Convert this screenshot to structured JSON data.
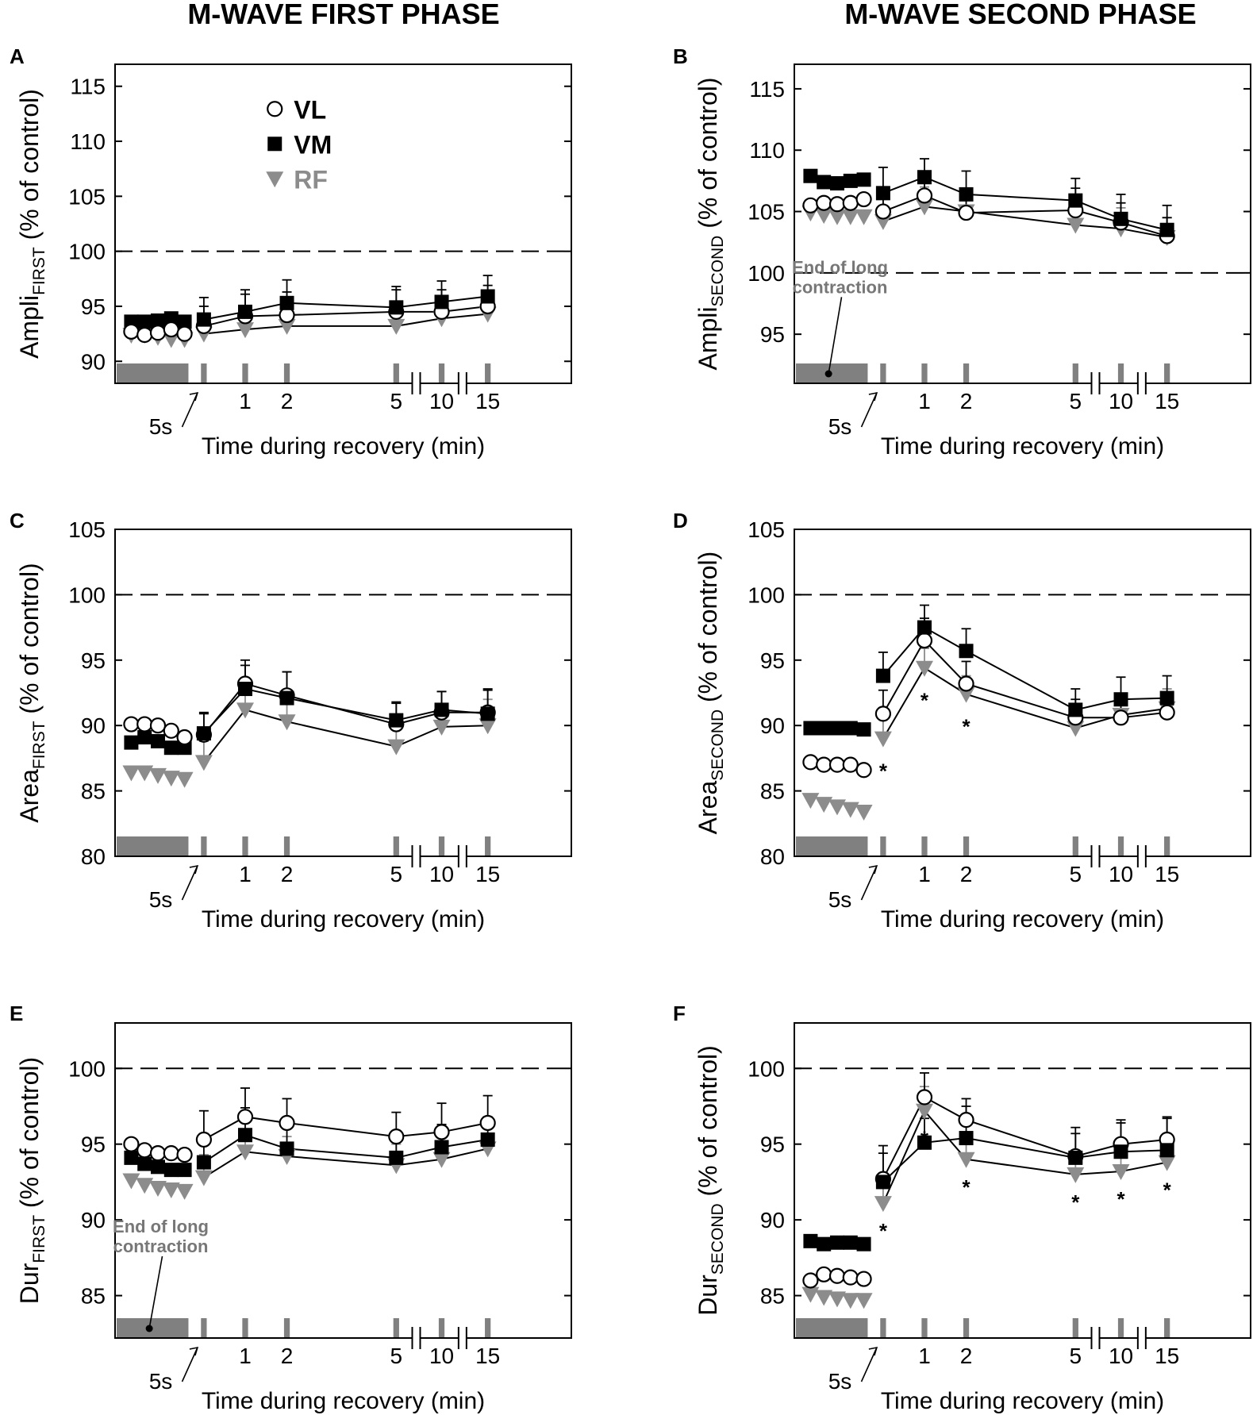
{
  "figure": {
    "titles": [
      "M-WAVE FIRST PHASE",
      "M-WAVE SECOND PHASE"
    ]
  },
  "legend": [
    {
      "label": "VL",
      "marker": "circle-open",
      "color": "#000000"
    },
    {
      "label": "VM",
      "marker": "square-filled",
      "color": "#000000"
    },
    {
      "label": "RF",
      "marker": "triangle-down",
      "color": "#8c8c8c"
    }
  ],
  "colors": {
    "rf": "#8c8c8c",
    "bar": "#808080",
    "axis": "#000000",
    "annotation": "#777777"
  },
  "chart_data": [
    {
      "type": "line",
      "panel": "A",
      "ylabel_main": "Ampli",
      "ylabel_sub": "FIRST",
      "ylabel_tail": " (% of control)",
      "xlabel": "Time during recovery (min)",
      "ylim": [
        88,
        117
      ],
      "yticks": [
        90,
        95,
        100,
        105,
        110,
        115
      ],
      "reference_line": 100,
      "x_ticks": [
        "1",
        "2",
        "5",
        "10",
        "15"
      ],
      "five_s_label": "5s",
      "annotation": "",
      "show_legend": true,
      "during_contraction": {
        "VL": [
          92.7,
          92.4,
          92.6,
          92.9,
          92.5
        ],
        "VM": [
          93.6,
          93.6,
          93.7,
          93.9,
          93.6
        ],
        "RF": [
          92.4,
          92.4,
          92.2,
          92.0,
          92.0
        ]
      },
      "recovery": {
        "x": [
          "5s",
          "1",
          "2",
          "5",
          "10",
          "15"
        ],
        "series": [
          {
            "name": "VL",
            "values": [
              93.2,
              94.1,
              94.2,
              94.5,
              94.5,
              95.0
            ],
            "errors": [
              1.8,
              2.0,
              2.1,
              2.0,
              2.0,
              1.9
            ]
          },
          {
            "name": "VM",
            "values": [
              93.8,
              94.5,
              95.3,
              94.9,
              95.4,
              95.9
            ],
            "errors": [
              2.0,
              2.0,
              2.1,
              1.9,
              1.9,
              1.9
            ]
          },
          {
            "name": "RF",
            "values": [
              92.5,
              92.9,
              93.2,
              93.2,
              93.9,
              94.3
            ],
            "errors": [
              1.6,
              1.6,
              1.5,
              1.5,
              1.5,
              1.5
            ]
          }
        ],
        "stars": []
      }
    },
    {
      "type": "line",
      "panel": "B",
      "ylabel_main": "Ampli",
      "ylabel_sub": "SECOND",
      "ylabel_tail": " (% of control)",
      "xlabel": "Time during recovery (min)",
      "ylim": [
        91,
        117
      ],
      "yticks": [
        95,
        100,
        105,
        110,
        115
      ],
      "reference_line": 100,
      "x_ticks": [
        "1",
        "2",
        "5",
        "10",
        "15"
      ],
      "five_s_label": "5s",
      "annotation": [
        "End of long",
        "contraction"
      ],
      "show_legend": false,
      "during_contraction": {
        "VL": [
          105.5,
          105.7,
          105.6,
          105.7,
          106.0
        ],
        "VM": [
          107.9,
          107.4,
          107.3,
          107.5,
          107.6
        ],
        "RF": [
          104.9,
          104.7,
          104.6,
          104.6,
          104.6
        ]
      },
      "recovery": {
        "x": [
          "5s",
          "1",
          "2",
          "5",
          "10",
          "15"
        ],
        "series": [
          {
            "name": "VL",
            "values": [
              105.0,
              106.3,
              104.9,
              105.1,
              104.1,
              103.0
            ],
            "errors": [
              2.0,
              2.0,
              1.8,
              1.8,
              1.6,
              1.5
            ]
          },
          {
            "name": "VM",
            "values": [
              106.5,
              107.8,
              106.4,
              105.9,
              104.4,
              103.5
            ],
            "errors": [
              2.1,
              1.5,
              1.9,
              1.8,
              2.0,
              2.0
            ]
          },
          {
            "name": "RF",
            "values": [
              104.2,
              105.4,
              105.0,
              103.9,
              103.6,
              102.9
            ],
            "errors": [
              2.0,
              1.6,
              1.6,
              1.7,
              1.7,
              1.6
            ]
          }
        ],
        "stars": []
      }
    },
    {
      "type": "line",
      "panel": "C",
      "ylabel_main": "Area",
      "ylabel_sub": "FIRST",
      "ylabel_tail": " (% of control)",
      "xlabel": "Time during recovery (min)",
      "ylim": [
        80,
        105
      ],
      "yticks": [
        80,
        85,
        90,
        95,
        100,
        105
      ],
      "reference_line": 100,
      "x_ticks": [
        "1",
        "2",
        "5",
        "10",
        "15"
      ],
      "five_s_label": "5s",
      "annotation": "",
      "show_legend": false,
      "during_contraction": {
        "VL": [
          90.1,
          90.1,
          90.0,
          89.6,
          89.1
        ],
        "VM": [
          88.7,
          89.1,
          88.8,
          88.3,
          88.3
        ],
        "RF": [
          86.4,
          86.4,
          86.2,
          86.0,
          85.9
        ]
      },
      "recovery": {
        "x": [
          "5s",
          "1",
          "2",
          "5",
          "10",
          "15"
        ],
        "series": [
          {
            "name": "VL",
            "values": [
              89.3,
              93.2,
              92.3,
              90.1,
              91.0,
              91.0
            ],
            "errors": [
              1.6,
              1.8,
              1.8,
              1.6,
              1.6,
              1.8
            ]
          },
          {
            "name": "VM",
            "values": [
              89.4,
              92.8,
              92.1,
              90.4,
              91.2,
              90.9
            ],
            "errors": [
              1.6,
              1.8,
              2.0,
              1.4,
              1.4,
              1.8
            ]
          },
          {
            "name": "RF",
            "values": [
              87.2,
              91.2,
              90.3,
              88.4,
              89.9,
              90.0
            ],
            "errors": [
              1.6,
              1.8,
              1.4,
              1.6,
              1.4,
              2.0
            ]
          }
        ],
        "stars": []
      }
    },
    {
      "type": "line",
      "panel": "D",
      "ylabel_main": "Area",
      "ylabel_sub": "SECOND",
      "ylabel_tail": " (% of control)",
      "xlabel": "Time during recovery (min)",
      "ylim": [
        80,
        105
      ],
      "yticks": [
        80,
        85,
        90,
        95,
        100,
        105
      ],
      "reference_line": 100,
      "x_ticks": [
        "1",
        "2",
        "5",
        "10",
        "15"
      ],
      "five_s_label": "5s",
      "annotation": "",
      "show_legend": false,
      "during_contraction": {
        "VL": [
          87.2,
          87.0,
          87.0,
          87.0,
          86.6
        ],
        "VM": [
          89.8,
          89.8,
          89.8,
          89.8,
          89.7
        ],
        "RF": [
          84.3,
          84.0,
          83.8,
          83.6,
          83.4
        ]
      },
      "recovery": {
        "x": [
          "5s",
          "1",
          "2",
          "5",
          "10",
          "15"
        ],
        "series": [
          {
            "name": "VL",
            "values": [
              90.9,
              96.5,
              93.2,
              90.6,
              90.6,
              91.0
            ],
            "errors": [
              1.8,
              1.7,
              1.7,
              1.4,
              1.2,
              1.2
            ]
          },
          {
            "name": "VM",
            "values": [
              93.8,
              97.5,
              95.7,
              91.2,
              92.0,
              92.1
            ],
            "errors": [
              1.8,
              1.7,
              1.7,
              1.6,
              1.7,
              1.7
            ]
          },
          {
            "name": "RF",
            "values": [
              89.0,
              94.4,
              92.4,
              89.8,
              90.8,
              91.3
            ],
            "errors": [
              1.5,
              1.5,
              1.4,
              1.4,
              1.2,
              1.5
            ]
          }
        ],
        "stars": [
          {
            "x": "5s",
            "label": "*"
          },
          {
            "x": "1",
            "label": "*"
          },
          {
            "x": "2",
            "label": "*"
          }
        ]
      }
    },
    {
      "type": "line",
      "panel": "E",
      "ylabel_main": "Dur",
      "ylabel_sub": "FIRST",
      "ylabel_tail": " (% of control)",
      "xlabel": "Time during recovery (min)",
      "ylim": [
        82.2,
        103
      ],
      "yticks": [
        85,
        90,
        95,
        100
      ],
      "reference_line": 100,
      "x_ticks": [
        "1",
        "2",
        "5",
        "10",
        "15"
      ],
      "five_s_label": "5s",
      "annotation": [
        "End of long",
        "contraction"
      ],
      "show_legend": false,
      "during_contraction": {
        "VL": [
          95.0,
          94.6,
          94.4,
          94.4,
          94.3
        ],
        "VM": [
          94.1,
          93.7,
          93.5,
          93.3,
          93.3
        ],
        "RF": [
          92.6,
          92.3,
          92.1,
          92.0,
          91.9
        ]
      },
      "recovery": {
        "x": [
          "5s",
          "1",
          "2",
          "5",
          "10",
          "15"
        ],
        "series": [
          {
            "name": "VL",
            "values": [
              95.3,
              96.8,
              96.4,
              95.5,
              95.8,
              96.4
            ],
            "errors": [
              1.9,
              1.9,
              1.6,
              1.6,
              1.9,
              1.8
            ]
          },
          {
            "name": "VM",
            "values": [
              93.8,
              95.6,
              94.7,
              94.1,
              94.8,
              95.3
            ],
            "errors": [
              1.8,
              1.8,
              1.6,
              1.6,
              1.5,
              1.5
            ]
          },
          {
            "name": "RF",
            "values": [
              92.8,
              94.5,
              94.2,
              93.6,
              94.0,
              94.7
            ],
            "errors": [
              1.5,
              1.5,
              1.3,
              1.4,
              1.4,
              1.4
            ]
          }
        ],
        "stars": []
      }
    },
    {
      "type": "line",
      "panel": "F",
      "ylabel_main": "Dur",
      "ylabel_sub": "SECOND",
      "ylabel_tail": " (% of control)",
      "xlabel": "Time during recovery (min)",
      "ylim": [
        82.2,
        103
      ],
      "yticks": [
        85,
        90,
        95,
        100
      ],
      "reference_line": 100,
      "x_ticks": [
        "1",
        "2",
        "5",
        "10",
        "15"
      ],
      "five_s_label": "5s",
      "annotation": "",
      "show_legend": false,
      "during_contraction": {
        "VL": [
          86.0,
          86.4,
          86.3,
          86.2,
          86.1
        ],
        "VM": [
          88.6,
          88.4,
          88.5,
          88.5,
          88.4
        ],
        "RF": [
          85.1,
          84.9,
          84.8,
          84.7,
          84.7
        ]
      },
      "recovery": {
        "x": [
          "5s",
          "1",
          "2",
          "5",
          "10",
          "15"
        ],
        "series": [
          {
            "name": "VL",
            "values": [
              92.7,
              98.1,
              96.6,
              94.2,
              95.0,
              95.3
            ],
            "errors": [
              2.2,
              1.6,
              1.4,
              1.9,
              1.6,
              1.5
            ]
          },
          {
            "name": "VM",
            "values": [
              92.5,
              95.1,
              95.4,
              94.1,
              94.5,
              94.6
            ],
            "errors": [
              1.9,
              1.6,
              2.1,
              1.6,
              1.9,
              2.1
            ]
          },
          {
            "name": "RF",
            "values": [
              91.1,
              97.2,
              94.0,
              93.0,
              93.2,
              93.8
            ],
            "errors": [
              1.6,
              1.6,
              1.4,
              1.5,
              1.6,
              1.6
            ]
          }
        ],
        "stars": [
          {
            "x": "5s",
            "label": "*"
          },
          {
            "x": "1",
            "label": "*"
          },
          {
            "x": "2",
            "label": "*"
          },
          {
            "x": "5",
            "label": "*"
          },
          {
            "x": "10",
            "label": "*"
          },
          {
            "x": "15",
            "label": "*"
          }
        ]
      }
    }
  ]
}
